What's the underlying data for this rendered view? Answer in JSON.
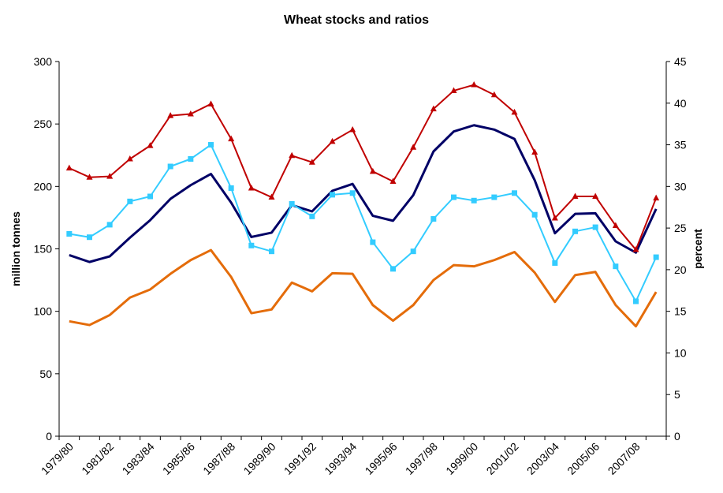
{
  "chart_data": {
    "type": "line",
    "title": "Wheat stocks and ratios",
    "y_left_label": "million tonnes",
    "y_right_label": "percent",
    "y_left_range": [
      0,
      300
    ],
    "y_left_ticks": [
      "0",
      "50",
      "100",
      "150",
      "200",
      "250",
      "300"
    ],
    "y_right_range": [
      0,
      45
    ],
    "y_right_ticks": [
      "0",
      "5",
      "10",
      "15",
      "20",
      "25",
      "30",
      "35",
      "40",
      "45"
    ],
    "x_tick_labels": [
      "1979/80",
      "1981/82",
      "1983/84",
      "1985/86",
      "1987/88",
      "1989/90",
      "1991/92",
      "1993/94",
      "1995/96",
      "1997/98",
      "1999/00",
      "2001/02",
      "2003/04",
      "2005/06",
      "2007/08"
    ],
    "x": [
      "1979/80",
      "1980/81",
      "1981/82",
      "1982/83",
      "1983/84",
      "1984/85",
      "1985/86",
      "1986/87",
      "1987/88",
      "1988/89",
      "1989/90",
      "1990/91",
      "1991/92",
      "1992/93",
      "1993/94",
      "1994/95",
      "1995/96",
      "1996/97",
      "1997/98",
      "1998/99",
      "1999/00",
      "2000/01",
      "2001/02",
      "2002/03",
      "2003/04",
      "2004/05",
      "2005/06",
      "2006/07",
      "2007/08",
      "2008/09"
    ],
    "grid": false,
    "legend": "none",
    "series": [
      {
        "axis": "left",
        "color": "#000066",
        "marker": "none",
        "values": [
          145,
          139.5,
          144,
          159,
          173,
          190,
          201,
          210,
          187,
          159.5,
          163,
          185,
          180,
          196.5,
          202,
          176.5,
          172.5,
          193,
          228,
          244,
          249,
          245.5,
          238,
          205,
          162.5,
          178,
          178.5,
          156,
          147,
          182
        ]
      },
      {
        "axis": "left",
        "color": "#E46C0A",
        "marker": "none",
        "values": [
          92,
          89,
          97,
          111,
          117.5,
          130,
          141,
          149,
          127.5,
          98.5,
          101.5,
          123,
          116,
          130.5,
          130,
          105,
          92.5,
          105,
          125,
          137,
          136,
          141,
          147.5,
          131,
          107.5,
          129,
          131.5,
          105,
          88,
          115.5
        ]
      },
      {
        "axis": "right",
        "color": "#C00000",
        "marker": "triangle",
        "values": [
          32.2,
          31.1,
          31.2,
          33.3,
          34.9,
          38.5,
          38.7,
          39.9,
          35.7,
          29.8,
          28.7,
          33.7,
          32.9,
          35.4,
          36.8,
          31.8,
          30.6,
          34.7,
          39.3,
          41.5,
          42.2,
          41.0,
          38.9,
          34.1,
          26.2,
          28.8,
          28.8,
          25.3,
          22.4,
          28.6
        ]
      },
      {
        "axis": "right",
        "color": "#33CCFF",
        "marker": "square",
        "values": [
          24.3,
          23.9,
          25.4,
          28.2,
          28.8,
          32.4,
          33.3,
          35.0,
          29.8,
          22.9,
          22.2,
          27.9,
          26.4,
          29.0,
          29.2,
          23.3,
          20.1,
          22.2,
          26.1,
          28.7,
          28.3,
          28.7,
          29.2,
          26.6,
          20.8,
          24.6,
          25.1,
          20.4,
          16.2,
          21.5
        ]
      }
    ]
  }
}
